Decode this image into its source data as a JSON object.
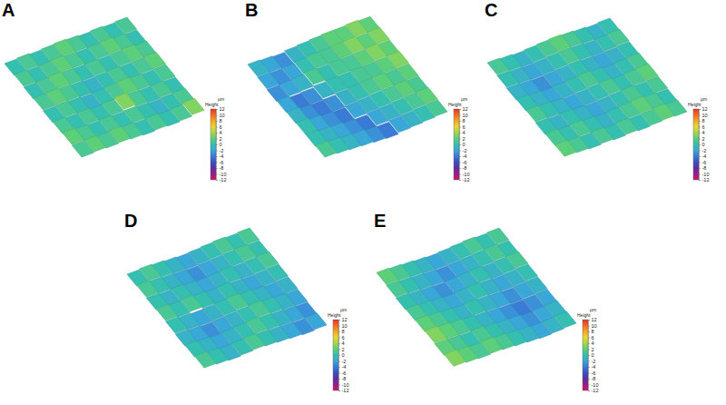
{
  "chart_data": [
    {
      "type": "surface",
      "title": "A",
      "colorbar": {
        "title": "Height",
        "unit": "µm",
        "range": [
          -12,
          12
        ],
        "ticks": [
          12,
          10,
          8,
          6,
          4,
          2,
          0,
          -2,
          -4,
          -6,
          -8,
          -10,
          -12
        ]
      },
      "cells": [
        [
          0,
          1,
          0,
          1,
          2,
          1,
          0,
          1,
          0,
          1
        ],
        [
          1,
          0,
          1,
          2,
          1,
          0,
          1,
          2,
          1,
          0
        ],
        [
          0,
          1,
          2,
          1,
          0,
          1,
          0,
          1,
          2,
          1
        ],
        [
          1,
          2,
          1,
          0,
          -1,
          0,
          1,
          0,
          1,
          2
        ],
        [
          0,
          1,
          0,
          -1,
          0,
          1,
          2,
          1,
          0,
          1
        ],
        [
          1,
          0,
          1,
          0,
          1,
          3,
          1,
          0,
          1,
          0
        ],
        [
          2,
          1,
          0,
          1,
          0,
          1,
          0,
          -1,
          0,
          1
        ],
        [
          1,
          2,
          1,
          2,
          1,
          0,
          1,
          0,
          1,
          3
        ]
      ]
    },
    {
      "type": "surface",
      "title": "B",
      "colorbar": {
        "title": "Height",
        "unit": "µm",
        "range": [
          -12,
          12
        ],
        "ticks": [
          12,
          10,
          8,
          6,
          4,
          2,
          0,
          -2,
          -4,
          -6,
          -8,
          -10,
          -12
        ]
      },
      "cells": [
        [
          -1,
          -2,
          -3,
          -1,
          0,
          1,
          2,
          2,
          3,
          2
        ],
        [
          -2,
          -3,
          -2,
          0,
          1,
          1,
          2,
          3,
          2,
          3
        ],
        [
          -3,
          -2,
          -1,
          1,
          0,
          1,
          1,
          2,
          3,
          2
        ],
        [
          -2,
          -4,
          -3,
          -1,
          0,
          0,
          1,
          1,
          2,
          3
        ],
        [
          -1,
          -3,
          -4,
          -3,
          -1,
          0,
          1,
          2,
          1,
          2
        ],
        [
          0,
          -2,
          -3,
          -4,
          -2,
          -1,
          0,
          1,
          2,
          1
        ],
        [
          0,
          -1,
          -2,
          -3,
          -4,
          -2,
          -1,
          0,
          1,
          2
        ],
        [
          1,
          0,
          -1,
          -2,
          -3,
          -4,
          -2,
          -1,
          0,
          1
        ]
      ]
    },
    {
      "type": "surface",
      "title": "C",
      "colorbar": {
        "title": "Height",
        "unit": "µm",
        "range": [
          -12,
          12
        ],
        "ticks": [
          12,
          10,
          8,
          6,
          4,
          2,
          0,
          -2,
          -4,
          -6,
          -8,
          -10,
          -12
        ]
      },
      "cells": [
        [
          1,
          0,
          -1,
          0,
          1,
          2,
          1,
          0,
          -1,
          0
        ],
        [
          0,
          -1,
          -2,
          -1,
          0,
          1,
          0,
          -1,
          0,
          1
        ],
        [
          -1,
          -2,
          -3,
          -2,
          -1,
          0,
          -1,
          -2,
          -1,
          0
        ],
        [
          0,
          -1,
          -2,
          -1,
          0,
          1,
          0,
          -1,
          0,
          1
        ],
        [
          1,
          0,
          -1,
          -2,
          -1,
          0,
          1,
          0,
          1,
          2
        ],
        [
          0,
          -1,
          0,
          -1,
          -2,
          -1,
          0,
          1,
          0,
          1
        ],
        [
          1,
          0,
          1,
          0,
          -1,
          0,
          1,
          2,
          1,
          0
        ],
        [
          2,
          1,
          0,
          1,
          0,
          1,
          0,
          1,
          2,
          1
        ]
      ]
    },
    {
      "type": "surface",
      "title": "D",
      "colorbar": {
        "title": "Height",
        "unit": "µm",
        "range": [
          -12,
          12
        ],
        "ticks": [
          12,
          10,
          8,
          6,
          4,
          2,
          0,
          -2,
          -4,
          -6,
          -8,
          -10,
          -12
        ]
      },
      "cells": [
        [
          0,
          1,
          0,
          -1,
          -2,
          -1,
          0,
          1,
          0,
          1
        ],
        [
          1,
          0,
          -1,
          -2,
          -3,
          -2,
          -1,
          0,
          1,
          0
        ],
        [
          0,
          -1,
          0,
          -1,
          -2,
          -1,
          0,
          -1,
          0,
          1
        ],
        [
          1,
          0,
          1,
          0,
          -1,
          0,
          -1,
          -2,
          -1,
          0
        ],
        [
          0,
          -1,
          -2,
          -1,
          0,
          1,
          0,
          -1,
          -2,
          -1
        ],
        [
          -1,
          -2,
          -3,
          -2,
          -1,
          0,
          1,
          0,
          -1,
          -2
        ],
        [
          0,
          -1,
          -2,
          -1,
          0,
          1,
          0,
          -1,
          -2,
          -3
        ],
        [
          1,
          0,
          -1,
          0,
          1,
          0,
          -1,
          -2,
          -3,
          -2
        ]
      ]
    },
    {
      "type": "surface",
      "title": "E",
      "colorbar": {
        "title": "Height",
        "unit": "µm",
        "range": [
          -12,
          12
        ],
        "ticks": [
          12,
          10,
          8,
          6,
          4,
          2,
          0,
          -2,
          -4,
          -6,
          -8,
          -10,
          -12
        ]
      },
      "cells": [
        [
          2,
          1,
          0,
          -1,
          -2,
          -1,
          0,
          1,
          0,
          1
        ],
        [
          1,
          0,
          -1,
          -2,
          -3,
          -2,
          -1,
          0,
          1,
          0
        ],
        [
          0,
          -1,
          -2,
          -3,
          -2,
          -1,
          0,
          -1,
          0,
          1
        ],
        [
          1,
          0,
          -1,
          -2,
          -1,
          0,
          -1,
          -2,
          -1,
          0
        ],
        [
          2,
          1,
          0,
          -1,
          0,
          -1,
          -2,
          -3,
          -2,
          -1
        ],
        [
          3,
          2,
          1,
          0,
          -1,
          -2,
          -3,
          -4,
          -3,
          -2
        ],
        [
          2,
          1,
          0,
          1,
          0,
          -1,
          -2,
          -3,
          -2,
          -1
        ],
        [
          3,
          2,
          1,
          2,
          1,
          0,
          -1,
          -2,
          -1,
          0
        ]
      ]
    }
  ]
}
